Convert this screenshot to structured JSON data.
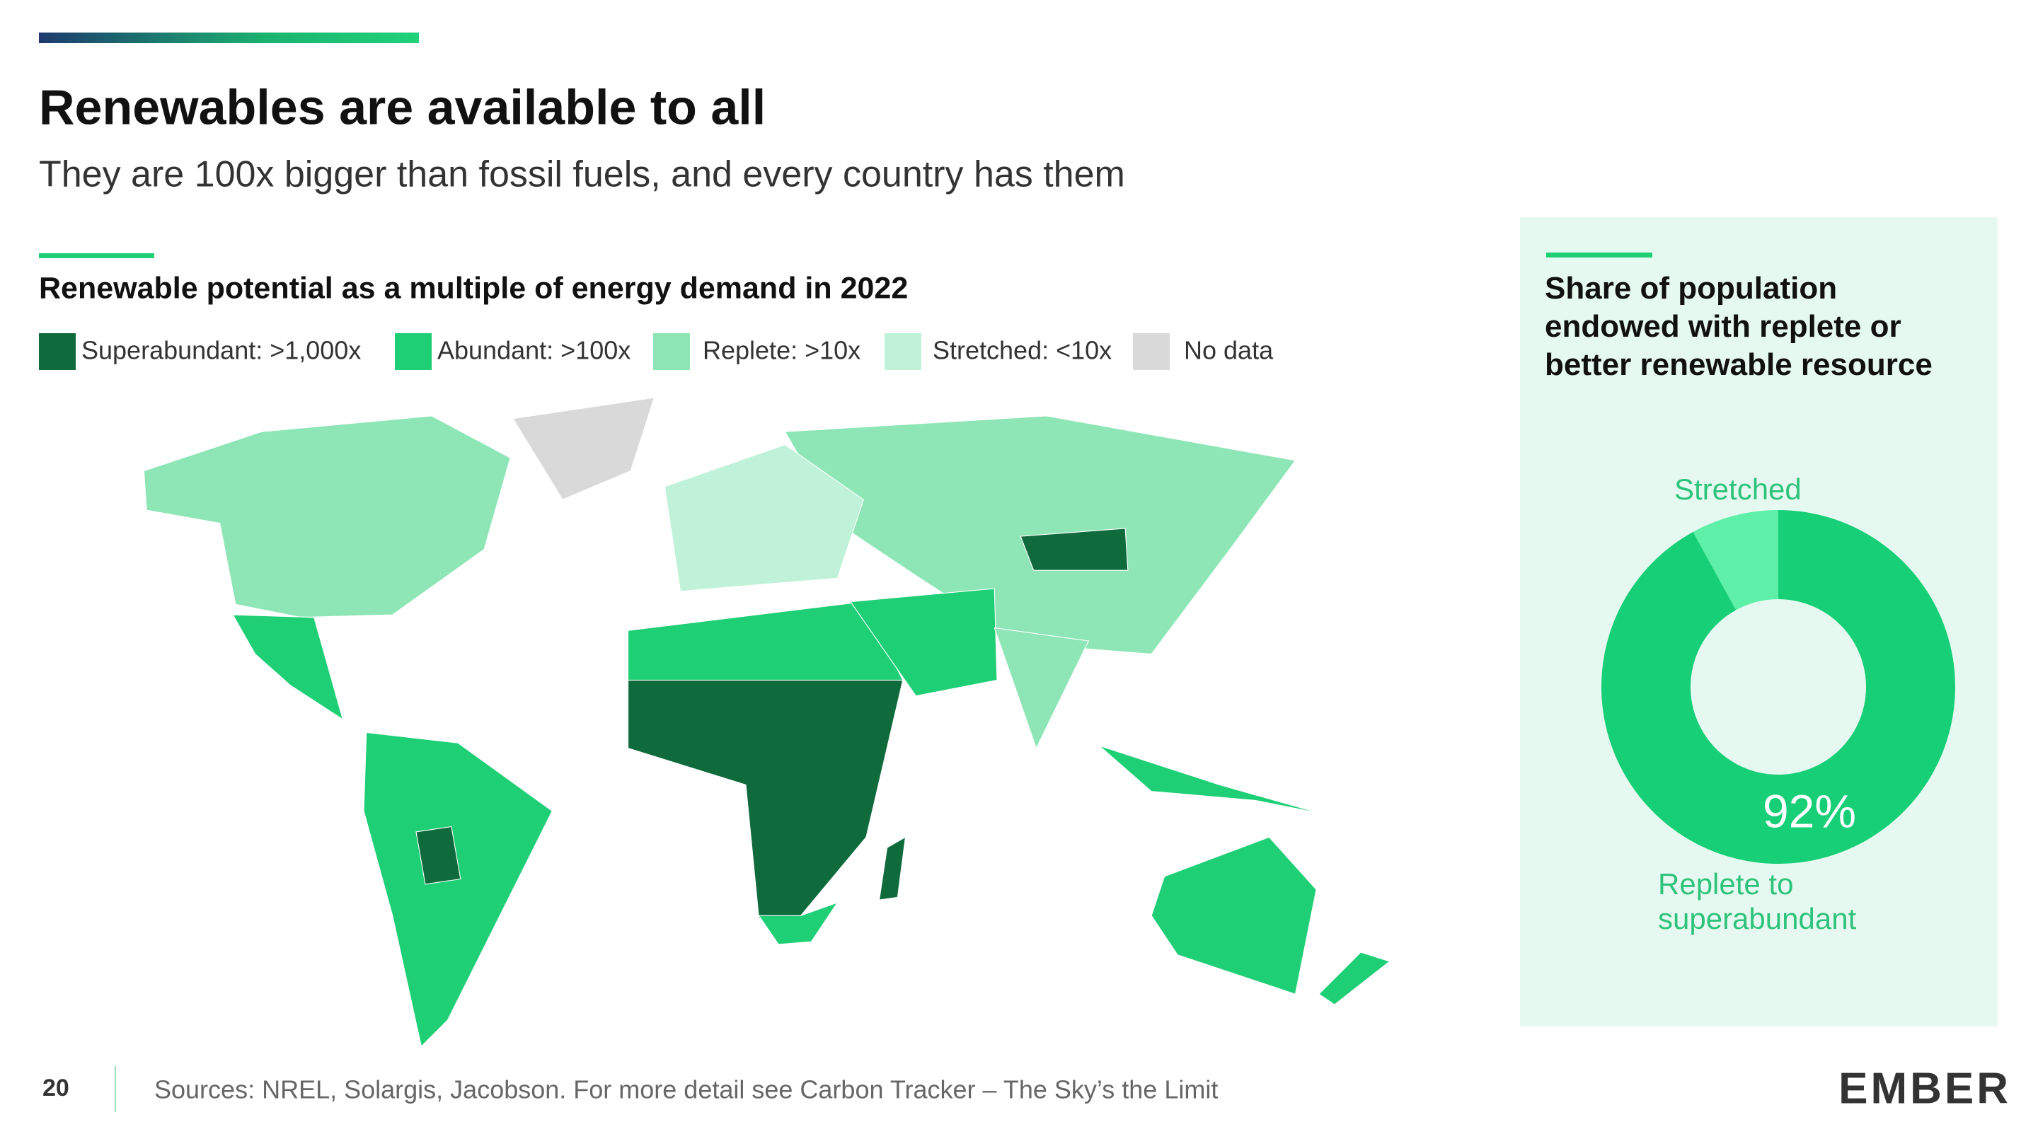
{
  "header": {
    "title": "Renewables are available to all",
    "subtitle": "They are 100x bigger than fossil fuels, and every country has them"
  },
  "map": {
    "title": "Renewable potential as a multiple of energy demand in 2022",
    "legend": [
      {
        "label": "Superabundant: >1,000x",
        "color": "#0f6b3c"
      },
      {
        "label": "Abundant: >100x",
        "color": "#1ecf75"
      },
      {
        "label": "Replete: >10x",
        "color": "#8ee6b6"
      },
      {
        "label": "Stretched: <10x",
        "color": "#bff2d8"
      },
      {
        "label": "No data",
        "color": "#d9d9d9"
      }
    ]
  },
  "chart_data": {
    "type": "pie",
    "title": "Share of population endowed with replete or better renewable resource",
    "categories": [
      "Replete to superabundant",
      "Stretched"
    ],
    "values": [
      92,
      8
    ],
    "value_labels": [
      "92%",
      null
    ],
    "colors": [
      "#17cf76",
      "#5ef0a8"
    ]
  },
  "footer": {
    "page": "20",
    "sources": "Sources: NREL, Solargis, Jacobson.  For more detail see Carbon Tracker – The Sky’s the Limit",
    "logo": "EMBER"
  }
}
